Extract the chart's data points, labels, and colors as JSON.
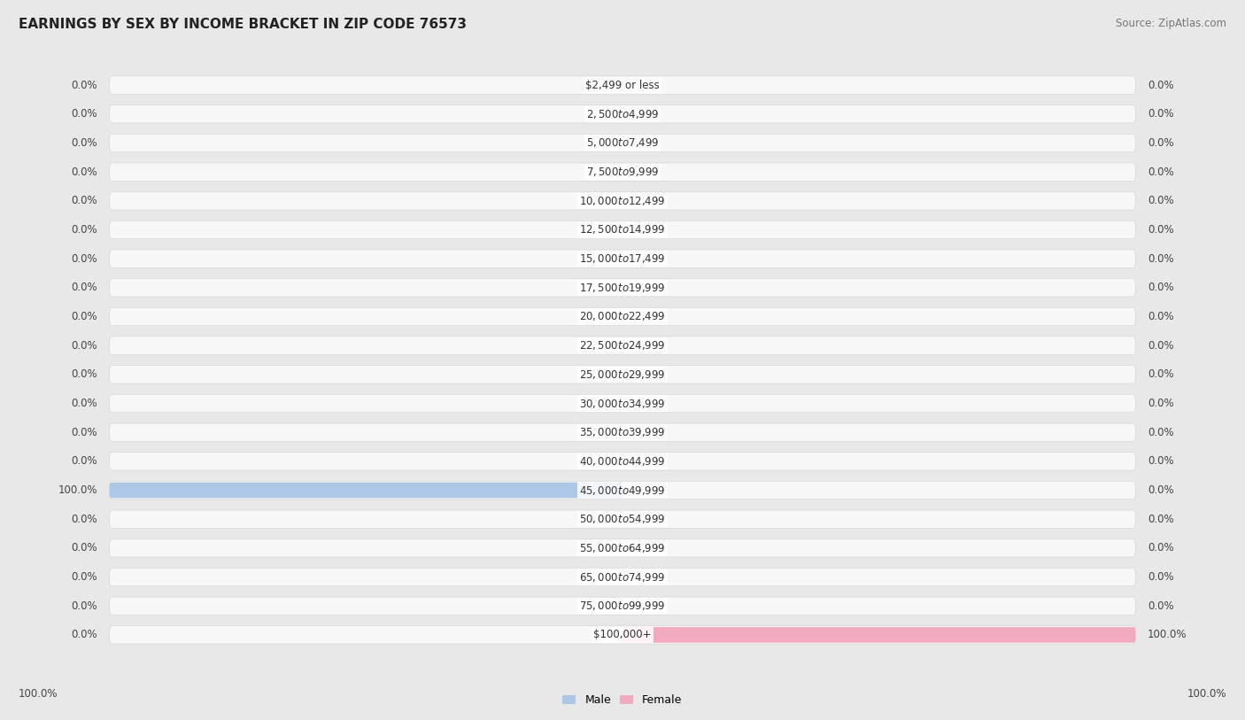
{
  "title": "EARNINGS BY SEX BY INCOME BRACKET IN ZIP CODE 76573",
  "source": "Source: ZipAtlas.com",
  "categories": [
    "$2,499 or less",
    "$2,500 to $4,999",
    "$5,000 to $7,499",
    "$7,500 to $9,999",
    "$10,000 to $12,499",
    "$12,500 to $14,999",
    "$15,000 to $17,499",
    "$17,500 to $19,999",
    "$20,000 to $22,499",
    "$22,500 to $24,999",
    "$25,000 to $29,999",
    "$30,000 to $34,999",
    "$35,000 to $39,999",
    "$40,000 to $44,999",
    "$45,000 to $49,999",
    "$50,000 to $54,999",
    "$55,000 to $64,999",
    "$65,000 to $74,999",
    "$75,000 to $99,999",
    "$100,000+"
  ],
  "male_values": [
    0.0,
    0.0,
    0.0,
    0.0,
    0.0,
    0.0,
    0.0,
    0.0,
    0.0,
    0.0,
    0.0,
    0.0,
    0.0,
    0.0,
    100.0,
    0.0,
    0.0,
    0.0,
    0.0,
    0.0
  ],
  "female_values": [
    0.0,
    0.0,
    0.0,
    0.0,
    0.0,
    0.0,
    0.0,
    0.0,
    0.0,
    0.0,
    0.0,
    0.0,
    0.0,
    0.0,
    0.0,
    0.0,
    0.0,
    0.0,
    0.0,
    100.0
  ],
  "male_color": "#adc8e6",
  "female_color": "#f2abbe",
  "male_label": "Male",
  "female_label": "Female",
  "max_val": 100.0,
  "background_color": "#e8e8e8",
  "bar_background": "#f7f7f7",
  "row_sep_color": "#d0d0d0",
  "title_fontsize": 11,
  "label_fontsize": 8.5,
  "cat_fontsize": 8.5,
  "source_fontsize": 8.5
}
